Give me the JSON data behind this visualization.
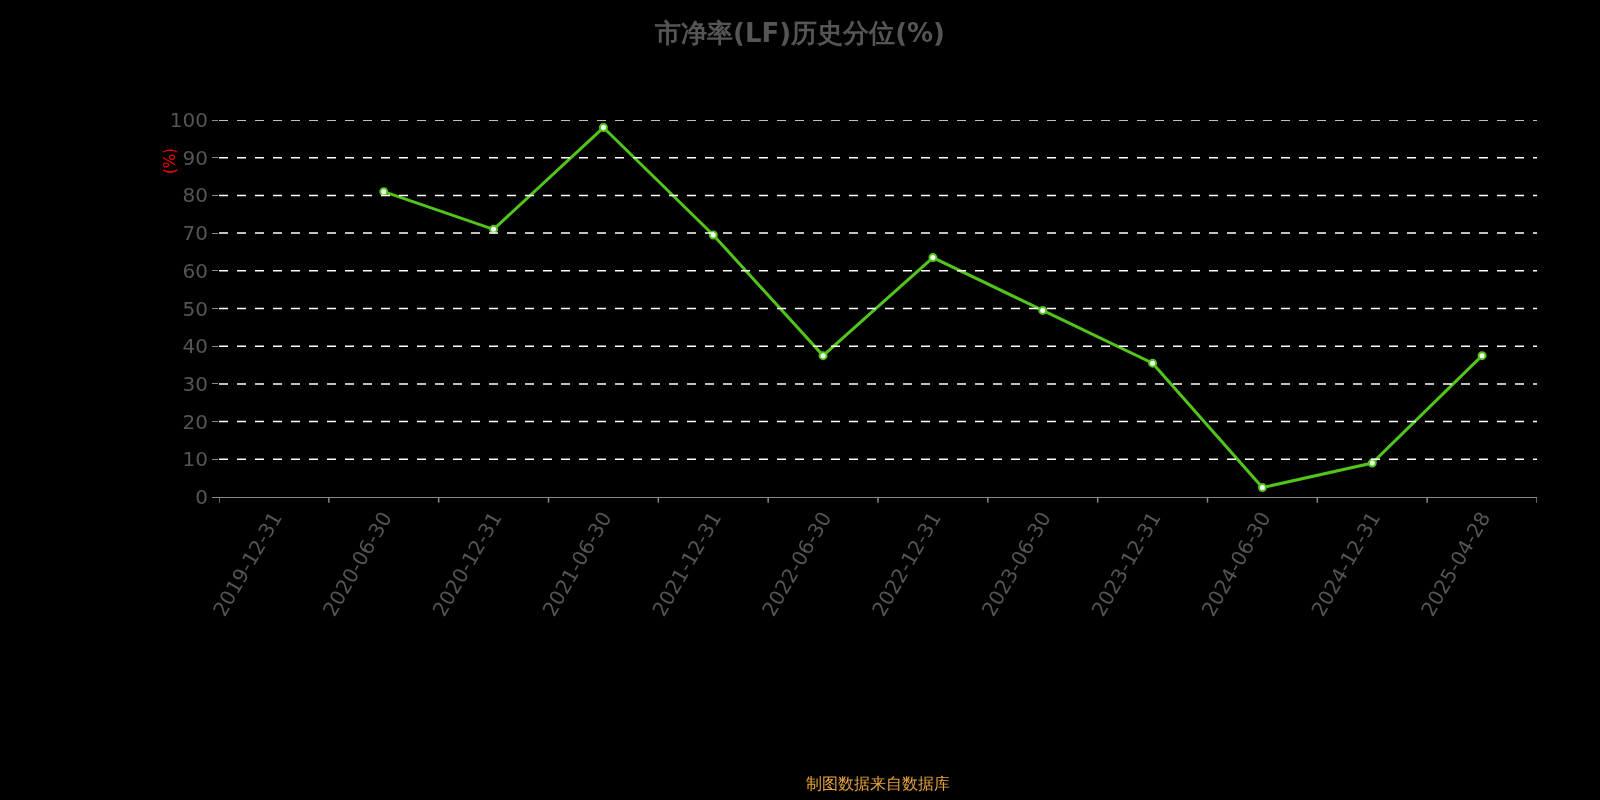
{
  "chart_data": {
    "type": "line",
    "title": "市净率(LF)历史分位(%)",
    "ylabel": "(%)",
    "categories": [
      "2019-12-31",
      "2020-06-30",
      "2020-12-31",
      "2021-06-30",
      "2021-12-31",
      "2022-06-30",
      "2022-12-31",
      "2023-06-30",
      "2023-12-31",
      "2024-06-30",
      "2024-12-31",
      "2025-04-28"
    ],
    "series": [
      {
        "color": "#52c41a",
        "values": [
          null,
          81,
          71,
          98,
          69.5,
          37.5,
          63.5,
          49.5,
          35.5,
          2.5,
          9,
          37.5
        ]
      }
    ],
    "ylim": [
      0,
      100
    ],
    "yticks": [
      0,
      10,
      20,
      30,
      40,
      50,
      60,
      70,
      80,
      90,
      100
    ],
    "grid": "y",
    "marker": "circle",
    "line_style": "solid",
    "annotations": [
      "制图数据来自数据库"
    ]
  }
}
